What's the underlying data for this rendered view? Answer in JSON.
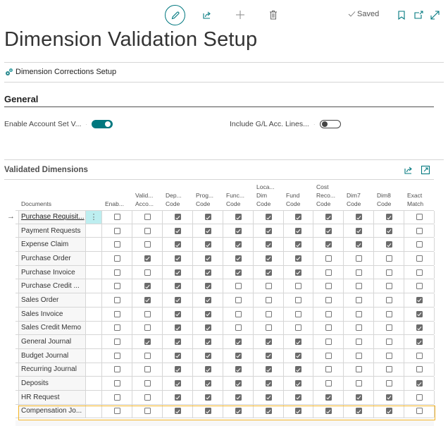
{
  "toolbar": {
    "edit_icon": "pencil-icon",
    "share_icon": "share-icon",
    "new_icon": "plus-icon",
    "delete_icon": "trash-icon",
    "saved_label": "Saved",
    "saved_icon": "checkmark-icon",
    "bookmark_icon": "bookmark-icon",
    "popout_icon": "open-new-window-icon",
    "expand_icon": "expand-icon"
  },
  "page": {
    "title": "Dimension Validation Setup"
  },
  "actions": {
    "dimension_corrections_setup": "Dimension Corrections Setup"
  },
  "general": {
    "title": "General",
    "fields": [
      {
        "label": "Enable Account Set V...",
        "value": true
      },
      {
        "label": "Include G/L Acc. Lines...",
        "value": false
      }
    ]
  },
  "validated_dimensions": {
    "title": "Validated Dimensions",
    "columns": [
      {
        "key": "documents",
        "label": [
          "Documents"
        ]
      },
      {
        "key": "enab",
        "label": [
          "Enab..."
        ]
      },
      {
        "key": "valid",
        "label": [
          "Valid...",
          "Acco..."
        ]
      },
      {
        "key": "dep",
        "label": [
          "Dep...",
          "Code"
        ]
      },
      {
        "key": "prog",
        "label": [
          "Prog...",
          "Code"
        ]
      },
      {
        "key": "func",
        "label": [
          "Func...",
          "Code"
        ]
      },
      {
        "key": "loca",
        "label": [
          "Loca...",
          "Dim",
          "Code"
        ]
      },
      {
        "key": "fund",
        "label": [
          "Fund",
          "Code"
        ]
      },
      {
        "key": "cost",
        "label": [
          "Cost",
          "Reco...",
          "Code"
        ]
      },
      {
        "key": "dim7",
        "label": [
          "Dim7",
          "Code"
        ]
      },
      {
        "key": "dim8",
        "label": [
          "Dim8",
          "Code"
        ]
      },
      {
        "key": "exact",
        "label": [
          "Exact",
          "Match"
        ]
      }
    ],
    "rows": [
      {
        "document": "Purchase Requisit...",
        "values": [
          false,
          false,
          true,
          true,
          true,
          true,
          true,
          true,
          true,
          true,
          false
        ]
      },
      {
        "document": "Payment Requests",
        "values": [
          false,
          false,
          true,
          true,
          true,
          true,
          true,
          true,
          true,
          true,
          false
        ]
      },
      {
        "document": "Expense Claim",
        "values": [
          false,
          false,
          true,
          true,
          true,
          true,
          true,
          true,
          true,
          true,
          false
        ]
      },
      {
        "document": "Purchase Order",
        "values": [
          false,
          true,
          true,
          true,
          true,
          true,
          true,
          false,
          false,
          false,
          false
        ]
      },
      {
        "document": "Purchase Invoice",
        "values": [
          false,
          false,
          true,
          true,
          true,
          true,
          true,
          false,
          false,
          false,
          false
        ]
      },
      {
        "document": "Purchase Credit ...",
        "values": [
          false,
          true,
          true,
          true,
          false,
          false,
          false,
          false,
          false,
          false,
          false
        ]
      },
      {
        "document": "Sales Order",
        "values": [
          false,
          true,
          true,
          true,
          false,
          false,
          false,
          false,
          false,
          false,
          true
        ]
      },
      {
        "document": "Sales Invoice",
        "values": [
          false,
          false,
          true,
          true,
          false,
          false,
          false,
          false,
          false,
          false,
          true
        ]
      },
      {
        "document": "Sales Credit Memo",
        "values": [
          false,
          false,
          true,
          true,
          false,
          false,
          false,
          false,
          false,
          false,
          true
        ]
      },
      {
        "document": "General Journal",
        "values": [
          false,
          true,
          true,
          true,
          true,
          true,
          true,
          false,
          false,
          false,
          true
        ]
      },
      {
        "document": "Budget Journal",
        "values": [
          false,
          false,
          true,
          true,
          true,
          true,
          true,
          false,
          false,
          false,
          false
        ]
      },
      {
        "document": "Recurring Journal",
        "values": [
          false,
          false,
          true,
          true,
          true,
          true,
          true,
          false,
          false,
          false,
          false
        ]
      },
      {
        "document": "Deposits",
        "values": [
          false,
          false,
          true,
          true,
          true,
          true,
          true,
          false,
          false,
          false,
          true
        ]
      },
      {
        "document": "HR Request",
        "values": [
          false,
          false,
          true,
          true,
          true,
          true,
          true,
          true,
          true,
          true,
          false
        ]
      },
      {
        "document": "Compensation Jo...",
        "values": [
          false,
          false,
          true,
          true,
          true,
          true,
          true,
          true,
          true,
          true,
          false
        ]
      }
    ],
    "selected_row": 0,
    "highlighted_row": 14
  },
  "colors": {
    "accent": "#00787f",
    "highlight_border": "#f3b323",
    "checked_fill": "#6b6b6b",
    "active_cell": "#bdeef0"
  }
}
